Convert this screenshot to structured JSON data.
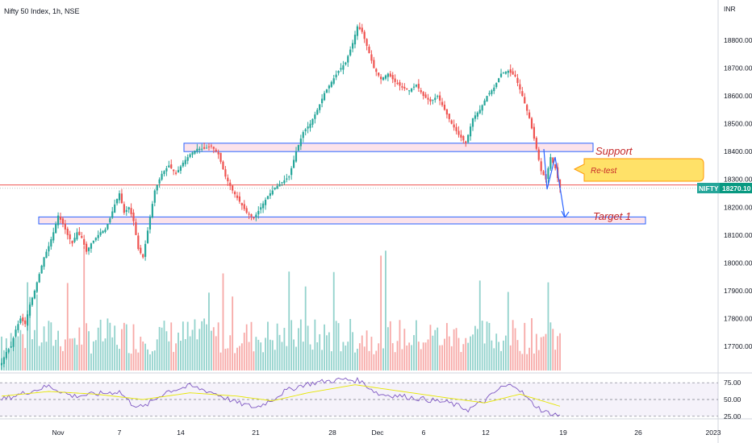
{
  "title": "Nifty 50 Index, 1h, NSE",
  "currency": "INR",
  "chart_data": [
    {
      "type": "candlestick",
      "title": "Nifty 50 Index, 1h, NSE",
      "ylabel": "INR",
      "ylim": [
        17610,
        18890
      ],
      "y_ticks": [
        "18800.00",
        "18700.00",
        "18600.00",
        "18500.00",
        "18400.00",
        "18300.00",
        "18200.00",
        "18100.00",
        "18000.00",
        "17900.00",
        "17800.00",
        "17700.00"
      ],
      "x_tick_labels": [
        "Nov",
        "7",
        "14",
        "21",
        "28",
        "Dec",
        "6",
        "12",
        "19",
        "26",
        "2023"
      ],
      "last_price": {
        "symbol": "NIFTY",
        "value": "18270.10"
      },
      "levels": [
        {
          "name": "Support",
          "low": 18400,
          "high": 18430,
          "color": "#2962ff"
        },
        {
          "name": "Target 1",
          "low": 18140,
          "high": 18165,
          "color": "#2962ff"
        }
      ],
      "current_line": 18280,
      "callout": "Re-test",
      "volume_max": 1.0,
      "keypoints": [
        [
          0,
          17640
        ],
        [
          2,
          17680
        ],
        [
          4,
          17700
        ],
        [
          6,
          17760
        ],
        [
          8,
          17800
        ],
        [
          10,
          17780
        ],
        [
          12,
          17850
        ],
        [
          14,
          17900
        ],
        [
          16,
          17960
        ],
        [
          18,
          18020
        ],
        [
          20,
          18060
        ],
        [
          22,
          18110
        ],
        [
          24,
          18170
        ],
        [
          26,
          18140
        ],
        [
          28,
          18100
        ],
        [
          30,
          18070
        ],
        [
          32,
          18110
        ],
        [
          34,
          18090
        ],
        [
          36,
          18040
        ],
        [
          38,
          18070
        ],
        [
          40,
          18090
        ],
        [
          42,
          18110
        ],
        [
          44,
          18120
        ],
        [
          46,
          18160
        ],
        [
          48,
          18210
        ],
        [
          50,
          18250
        ],
        [
          52,
          18180
        ],
        [
          54,
          18200
        ],
        [
          56,
          18150
        ],
        [
          58,
          18050
        ],
        [
          60,
          18020
        ],
        [
          65,
          18260
        ],
        [
          68,
          18320
        ],
        [
          71,
          18350
        ],
        [
          74,
          18320
        ],
        [
          77,
          18360
        ],
        [
          80,
          18390
        ],
        [
          83,
          18410
        ],
        [
          86,
          18410
        ],
        [
          89,
          18420
        ],
        [
          92,
          18390
        ],
        [
          95,
          18310
        ],
        [
          98,
          18260
        ],
        [
          101,
          18220
        ],
        [
          104,
          18180
        ],
        [
          107,
          18160
        ],
        [
          110,
          18200
        ],
        [
          113,
          18240
        ],
        [
          116,
          18270
        ],
        [
          119,
          18290
        ],
        [
          122,
          18310
        ],
        [
          125,
          18400
        ],
        [
          128,
          18470
        ],
        [
          131,
          18500
        ],
        [
          134,
          18550
        ],
        [
          137,
          18610
        ],
        [
          140,
          18650
        ],
        [
          143,
          18690
        ],
        [
          146,
          18720
        ],
        [
          149,
          18790
        ],
        [
          151,
          18850
        ],
        [
          153,
          18830
        ],
        [
          155,
          18780
        ],
        [
          158,
          18700
        ],
        [
          161,
          18660
        ],
        [
          164,
          18680
        ],
        [
          167,
          18650
        ],
        [
          170,
          18630
        ],
        [
          173,
          18620
        ],
        [
          176,
          18640
        ],
        [
          179,
          18600
        ],
        [
          182,
          18580
        ],
        [
          185,
          18600
        ],
        [
          188,
          18550
        ],
        [
          191,
          18500
        ],
        [
          194,
          18460
        ],
        [
          197,
          18430
        ],
        [
          200,
          18520
        ],
        [
          203,
          18550
        ],
        [
          206,
          18600
        ],
        [
          209,
          18630
        ],
        [
          212,
          18680
        ],
        [
          215,
          18690
        ],
        [
          218,
          18670
        ],
        [
          221,
          18600
        ],
        [
          224,
          18520
        ],
        [
          227,
          18410
        ],
        [
          229,
          18330
        ],
        [
          231,
          18300
        ],
        [
          233,
          18380
        ],
        [
          235,
          18340
        ],
        [
          237,
          18270
        ]
      ],
      "rsi": {
        "levels": [
          "75.00",
          "50.00",
          "25.00"
        ],
        "keypoints": [
          [
            0,
            50
          ],
          [
            10,
            60
          ],
          [
            20,
            70
          ],
          [
            30,
            55
          ],
          [
            40,
            58
          ],
          [
            50,
            62
          ],
          [
            55,
            44
          ],
          [
            60,
            38
          ],
          [
            70,
            62
          ],
          [
            80,
            70
          ],
          [
            90,
            60
          ],
          [
            100,
            45
          ],
          [
            108,
            38
          ],
          [
            115,
            50
          ],
          [
            120,
            62
          ],
          [
            128,
            72
          ],
          [
            135,
            76
          ],
          [
            145,
            80
          ],
          [
            152,
            78
          ],
          [
            160,
            58
          ],
          [
            170,
            55
          ],
          [
            180,
            50
          ],
          [
            190,
            45
          ],
          [
            198,
            35
          ],
          [
            205,
            48
          ],
          [
            212,
            68
          ],
          [
            218,
            72
          ],
          [
            224,
            48
          ],
          [
            230,
            32
          ],
          [
            237,
            26
          ]
        ],
        "ma_keypoints": [
          [
            0,
            55
          ],
          [
            20,
            62
          ],
          [
            40,
            58
          ],
          [
            60,
            50
          ],
          [
            80,
            60
          ],
          [
            100,
            55
          ],
          [
            115,
            48
          ],
          [
            130,
            60
          ],
          [
            150,
            72
          ],
          [
            170,
            62
          ],
          [
            190,
            52
          ],
          [
            205,
            45
          ],
          [
            220,
            58
          ],
          [
            237,
            40
          ]
        ]
      }
    }
  ]
}
